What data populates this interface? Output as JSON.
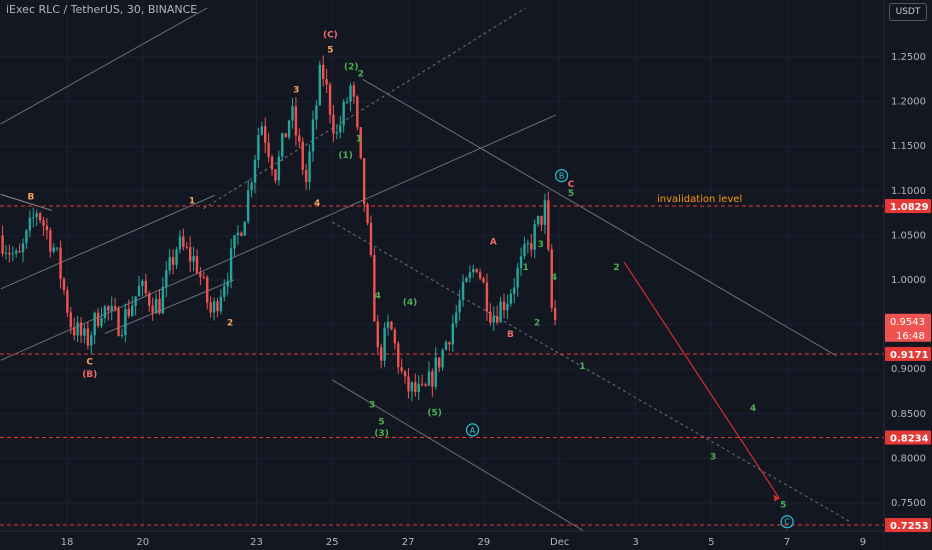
{
  "header": {
    "symbol_title": "iExec RLC / TetherUS, 30, BINANCE",
    "currency_button": "USDT"
  },
  "colors": {
    "background": "#131722",
    "up": "#26a69a",
    "down": "#ef5350",
    "level_line": "#e53935",
    "wave_green": "#4caf50",
    "wave_orange": "#f5a25d",
    "wave_red": "#ef6c6c",
    "circle_label": "#26c6da",
    "projection": "#d32f2f"
  },
  "chart_data": {
    "type": "candlestick",
    "xaxis": {
      "ticks": [
        {
          "label": "18",
          "day": 18
        },
        {
          "label": "20",
          "day": 20
        },
        {
          "label": "23",
          "day": 23
        },
        {
          "label": "25",
          "day": 25
        },
        {
          "label": "27",
          "day": 27
        },
        {
          "label": "29",
          "day": 29
        },
        {
          "label": "Dec",
          "day": 31
        },
        {
          "label": "3",
          "day": 33
        },
        {
          "label": "5",
          "day": 35
        },
        {
          "label": "7",
          "day": 37
        },
        {
          "label": "9",
          "day": 39
        }
      ]
    },
    "yaxis": {
      "ylim": [
        0.717,
        1.305
      ],
      "ticks": [
        "0.7500",
        "0.8000",
        "0.8500",
        "0.9000",
        "0.9500",
        "1.0000",
        "1.0500",
        "1.1000",
        "1.1500",
        "1.2000",
        "1.2500"
      ]
    },
    "price_path": [
      {
        "day": 16.3,
        "price": 1.05
      },
      {
        "day": 16.8,
        "price": 1.02
      },
      {
        "day": 17.3,
        "price": 1.08
      },
      {
        "day": 17.8,
        "price": 1.03
      },
      {
        "day": 18.2,
        "price": 0.95
      },
      {
        "day": 18.6,
        "price": 0.93
      },
      {
        "day": 19.0,
        "price": 0.97
      },
      {
        "day": 19.5,
        "price": 0.95
      },
      {
        "day": 20.0,
        "price": 0.99
      },
      {
        "day": 20.5,
        "price": 0.97
      },
      {
        "day": 21.0,
        "price": 1.04
      },
      {
        "day": 21.5,
        "price": 1.02
      },
      {
        "day": 21.9,
        "price": 0.96
      },
      {
        "day": 22.4,
        "price": 1.02
      },
      {
        "day": 22.8,
        "price": 1.08
      },
      {
        "day": 23.2,
        "price": 1.18
      },
      {
        "day": 23.6,
        "price": 1.12
      },
      {
        "day": 24.0,
        "price": 1.19
      },
      {
        "day": 24.4,
        "price": 1.11
      },
      {
        "day": 24.8,
        "price": 1.24
      },
      {
        "day": 25.2,
        "price": 1.16
      },
      {
        "day": 25.6,
        "price": 1.22
      },
      {
        "day": 25.9,
        "price": 1.1
      },
      {
        "day": 26.1,
        "price": 1.02
      },
      {
        "day": 26.3,
        "price": 0.91
      },
      {
        "day": 26.6,
        "price": 0.95
      },
      {
        "day": 27.0,
        "price": 0.88
      },
      {
        "day": 27.5,
        "price": 0.87
      },
      {
        "day": 28.0,
        "price": 0.92
      },
      {
        "day": 28.5,
        "price": 0.98
      },
      {
        "day": 28.9,
        "price": 1.02
      },
      {
        "day": 29.3,
        "price": 0.96
      },
      {
        "day": 29.7,
        "price": 0.98
      },
      {
        "day": 30.1,
        "price": 1.02
      },
      {
        "day": 30.5,
        "price": 1.06
      },
      {
        "day": 30.7,
        "price": 1.08
      },
      {
        "day": 30.9,
        "price": 0.9543
      }
    ],
    "horizontal_levels": [
      {
        "value": 1.0829,
        "label": "1.0829"
      },
      {
        "value": 0.9171,
        "label": "0.9171"
      },
      {
        "value": 0.8234,
        "label": "0.8234"
      },
      {
        "value": 0.7253,
        "label": "0.7253"
      }
    ],
    "current_price": {
      "label": "0.9543",
      "value": 0.9543,
      "countdown": "16:48"
    },
    "annotations": {
      "level_note": "invalidation level",
      "wave_labels": [
        {
          "text": "(C)",
          "day": 24.95,
          "price": 1.272,
          "color": "wave_red"
        },
        {
          "text": "5",
          "day": 24.95,
          "price": 1.255,
          "color": "wave_orange"
        },
        {
          "text": "(2)",
          "day": 25.5,
          "price": 1.236,
          "color": "wave_green"
        },
        {
          "text": "2",
          "day": 25.75,
          "price": 1.228,
          "color": "wave_green"
        },
        {
          "text": "3",
          "day": 24.05,
          "price": 1.21,
          "color": "wave_orange"
        },
        {
          "text": "1",
          "day": 25.7,
          "price": 1.155,
          "color": "wave_green"
        },
        {
          "text": "(1)",
          "day": 25.35,
          "price": 1.137,
          "color": "wave_green"
        },
        {
          "text": "4",
          "day": 24.6,
          "price": 1.083,
          "color": "wave_orange"
        },
        {
          "text": "B",
          "day": 17.05,
          "price": 1.09,
          "color": "wave_orange"
        },
        {
          "text": "1",
          "day": 21.3,
          "price": 1.086,
          "color": "wave_orange"
        },
        {
          "text": "2",
          "day": 22.3,
          "price": 0.949,
          "color": "wave_orange"
        },
        {
          "text": "C",
          "day": 18.6,
          "price": 0.905,
          "color": "wave_orange"
        },
        {
          "text": "(B)",
          "day": 18.6,
          "price": 0.891,
          "color": "wave_red"
        },
        {
          "text": "4",
          "day": 26.2,
          "price": 0.979,
          "color": "wave_green"
        },
        {
          "text": "(4)",
          "day": 27.05,
          "price": 0.972,
          "color": "wave_green"
        },
        {
          "text": "3",
          "day": 26.05,
          "price": 0.857,
          "color": "wave_green"
        },
        {
          "text": "5",
          "day": 26.3,
          "price": 0.838,
          "color": "wave_green"
        },
        {
          "text": "(3)",
          "day": 26.3,
          "price": 0.825,
          "color": "wave_green"
        },
        {
          "text": "(5)",
          "day": 27.7,
          "price": 0.848,
          "color": "wave_green"
        },
        {
          "text": "A",
          "day": 29.25,
          "price": 1.04,
          "color": "wave_red"
        },
        {
          "text": "1",
          "day": 30.1,
          "price": 1.011,
          "color": "wave_green"
        },
        {
          "text": "3",
          "day": 30.5,
          "price": 1.037,
          "color": "wave_green"
        },
        {
          "text": "4",
          "day": 30.85,
          "price": 1.0,
          "color": "wave_green"
        },
        {
          "text": "2",
          "day": 30.4,
          "price": 0.949,
          "color": "wave_green"
        },
        {
          "text": "B",
          "day": 29.7,
          "price": 0.936,
          "color": "wave_red"
        },
        {
          "text": "C",
          "day": 31.3,
          "price": 1.104,
          "color": "wave_red"
        },
        {
          "text": "5",
          "day": 31.3,
          "price": 1.094,
          "color": "wave_green"
        },
        {
          "text": "2",
          "day": 32.5,
          "price": 1.011,
          "color": "wave_green"
        },
        {
          "text": "1",
          "day": 31.6,
          "price": 0.9,
          "color": "wave_green"
        },
        {
          "text": "4",
          "day": 36.1,
          "price": 0.853,
          "color": "wave_green"
        },
        {
          "text": "3",
          "day": 35.05,
          "price": 0.799,
          "color": "wave_green"
        },
        {
          "text": "5",
          "day": 36.9,
          "price": 0.745,
          "color": "wave_green"
        }
      ],
      "circle_labels": [
        {
          "text": "B",
          "day": 31.05,
          "price": 1.117
        },
        {
          "text": "A",
          "day": 28.7,
          "price": 0.832
        },
        {
          "text": "C",
          "day": 37.0,
          "price": 0.729
        }
      ]
    }
  }
}
